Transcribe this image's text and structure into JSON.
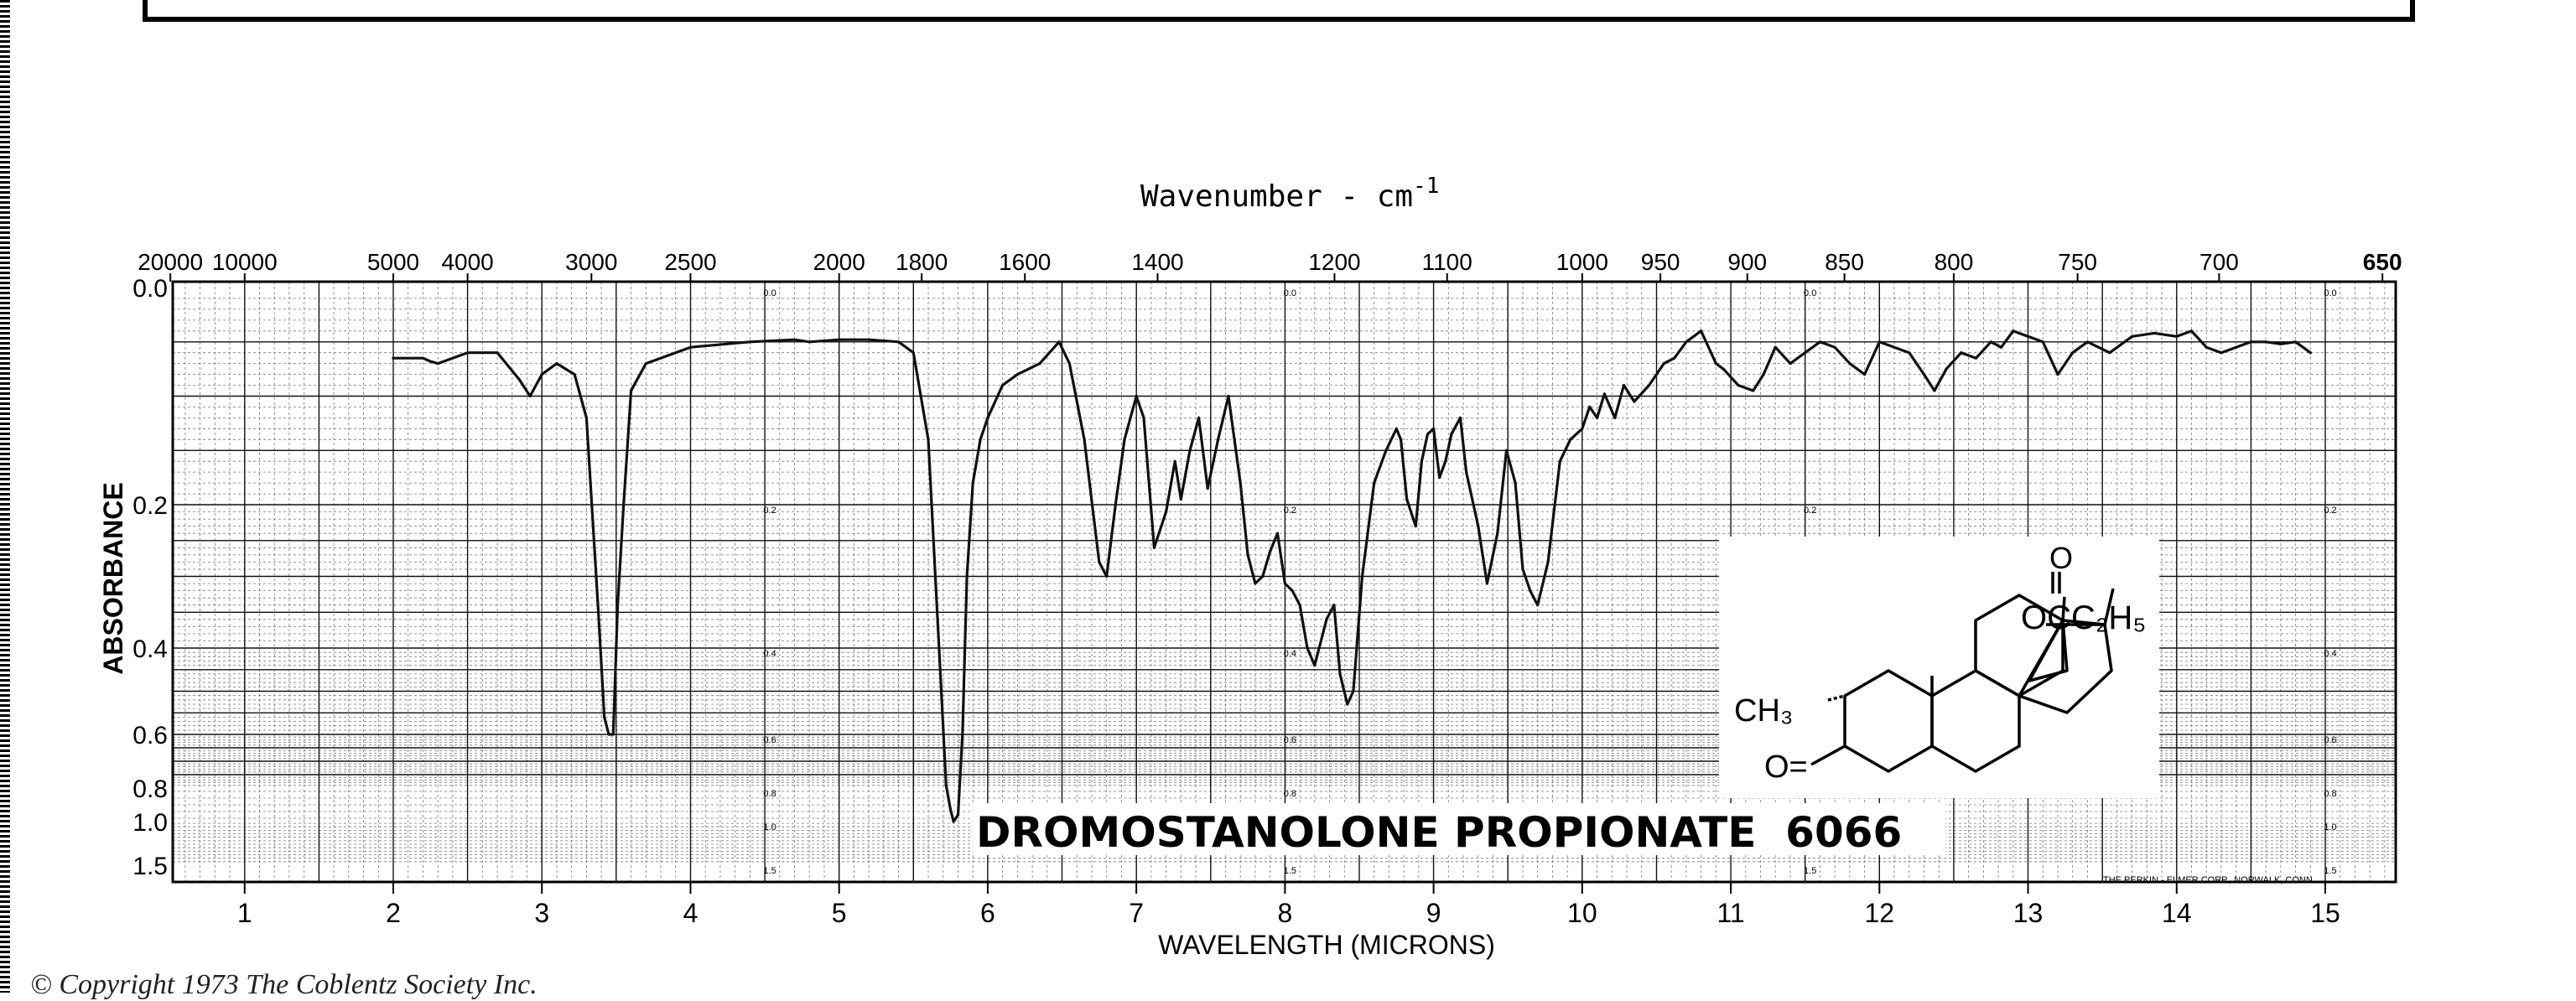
{
  "chart_data": {
    "type": "line",
    "title": "DROMOSTANOLONE PROPIONATE  6066",
    "top_axis_title": "Wavenumber - cm",
    "top_axis_title_exponent": "-1",
    "top_ticks": [
      {
        "wavenumber": 20000,
        "label": "20000"
      },
      {
        "wavenumber": 10000,
        "label": "10000"
      },
      {
        "wavenumber": 5000,
        "label": "5000"
      },
      {
        "wavenumber": 4000,
        "label": "4000"
      },
      {
        "wavenumber": 3000,
        "label": "3000"
      },
      {
        "wavenumber": 2500,
        "label": "2500"
      },
      {
        "wavenumber": 2000,
        "label": "2000"
      },
      {
        "wavenumber": 1800,
        "label": "1800"
      },
      {
        "wavenumber": 1600,
        "label": "1600"
      },
      {
        "wavenumber": 1400,
        "label": "1400"
      },
      {
        "wavenumber": 1200,
        "label": "1200"
      },
      {
        "wavenumber": 1100,
        "label": "1100"
      },
      {
        "wavenumber": 1000,
        "label": "1000"
      },
      {
        "wavenumber": 950,
        "label": "950"
      },
      {
        "wavenumber": 900,
        "label": "900"
      },
      {
        "wavenumber": 850,
        "label": "850"
      },
      {
        "wavenumber": 800,
        "label": "800"
      },
      {
        "wavenumber": 750,
        "label": "750"
      },
      {
        "wavenumber": 700,
        "label": "700"
      },
      {
        "wavenumber": 650,
        "label": "650"
      }
    ],
    "xlabel": "WAVELENGTH (MICRONS)",
    "x_ticks": [
      1,
      2,
      3,
      4,
      5,
      6,
      7,
      8,
      9,
      10,
      11,
      12,
      13,
      14,
      15
    ],
    "xlim": [
      0.5,
      15.5
    ],
    "ylabel": "ABSORBANCE",
    "y_ticks": [
      {
        "value": 0.0,
        "label": "0.0"
      },
      {
        "value": 0.2,
        "label": "0.2"
      },
      {
        "value": 0.4,
        "label": "0.4"
      },
      {
        "value": 0.6,
        "label": "0.6"
      },
      {
        "value": 0.8,
        "label": "0.8"
      },
      {
        "value": 1.0,
        "label": "1.0"
      },
      {
        "value": 1.5,
        "label": "1.5"
      }
    ],
    "ylim": [
      0.0,
      1.5
    ],
    "y_scale": "absorbance (log of transmittance)",
    "grid": true,
    "inner_scale_labels": [
      "0.0",
      "0.2",
      "0.4",
      "0.6",
      "0.8",
      "1.0",
      "1.5"
    ],
    "publisher_text": "THE PERKIN - ELMER CORP., NORWALK, CONN.",
    "series": [
      {
        "x": [
          2.0,
          2.2,
          2.25,
          2.3,
          2.5,
          2.7,
          2.85,
          2.92,
          3.0,
          3.1,
          3.16,
          3.22,
          3.3,
          3.38,
          3.42,
          3.45,
          3.48,
          3.51,
          3.55,
          3.6,
          3.7,
          4.0,
          4.4,
          4.7,
          4.8,
          5.0,
          5.2,
          5.4,
          5.5,
          5.6,
          5.68,
          5.72,
          5.75,
          5.77,
          5.8,
          5.83,
          5.86,
          5.9,
          5.95,
          6.0,
          6.1,
          6.2,
          6.35,
          6.48,
          6.55,
          6.65,
          6.75,
          6.8,
          6.86,
          6.92,
          7.0,
          7.05,
          7.12,
          7.2,
          7.26,
          7.3,
          7.36,
          7.42,
          7.48,
          7.55,
          7.62,
          7.7,
          7.75,
          7.8,
          7.85,
          7.9,
          7.95,
          8.0,
          8.05,
          8.1,
          8.15,
          8.2,
          8.28,
          8.33,
          8.37,
          8.42,
          8.46,
          8.52,
          8.6,
          8.68,
          8.75,
          8.78,
          8.82,
          8.88,
          8.92,
          8.96,
          9.0,
          9.04,
          9.08,
          9.12,
          9.18,
          9.22,
          9.3,
          9.36,
          9.43,
          9.49,
          9.55,
          9.6,
          9.65,
          9.7,
          9.77,
          9.85,
          9.92,
          10.0,
          10.05,
          10.1,
          10.15,
          10.22,
          10.28,
          10.35,
          10.45,
          10.55,
          10.62,
          10.7,
          10.8,
          10.9,
          10.95,
          11.05,
          11.15,
          11.22,
          11.3,
          11.4,
          11.5,
          11.6,
          11.7,
          11.8,
          11.9,
          12.0,
          12.1,
          12.2,
          12.3,
          12.37,
          12.45,
          12.55,
          12.65,
          12.75,
          12.82,
          12.9,
          13.0,
          13.1,
          13.2,
          13.3,
          13.4,
          13.55,
          13.7,
          13.85,
          14.0,
          14.1,
          14.2,
          14.3,
          14.4,
          14.5,
          14.6,
          14.7,
          14.8,
          14.9
        ],
        "y": [
          0.065,
          0.065,
          0.068,
          0.07,
          0.06,
          0.06,
          0.085,
          0.1,
          0.08,
          0.07,
          0.075,
          0.08,
          0.12,
          0.35,
          0.56,
          0.6,
          0.6,
          0.34,
          0.2,
          0.095,
          0.07,
          0.055,
          0.05,
          0.048,
          0.05,
          0.048,
          0.048,
          0.05,
          0.06,
          0.14,
          0.45,
          0.79,
          0.93,
          1.0,
          0.96,
          0.6,
          0.3,
          0.18,
          0.14,
          0.12,
          0.09,
          0.08,
          0.07,
          0.05,
          0.07,
          0.14,
          0.28,
          0.3,
          0.2,
          0.14,
          0.1,
          0.12,
          0.26,
          0.21,
          0.16,
          0.195,
          0.15,
          0.12,
          0.185,
          0.14,
          0.1,
          0.18,
          0.27,
          0.31,
          0.3,
          0.265,
          0.24,
          0.31,
          0.32,
          0.34,
          0.4,
          0.44,
          0.36,
          0.34,
          0.46,
          0.53,
          0.5,
          0.3,
          0.18,
          0.15,
          0.13,
          0.14,
          0.195,
          0.23,
          0.16,
          0.135,
          0.13,
          0.175,
          0.16,
          0.135,
          0.12,
          0.17,
          0.23,
          0.31,
          0.24,
          0.15,
          0.18,
          0.29,
          0.32,
          0.34,
          0.28,
          0.16,
          0.14,
          0.13,
          0.11,
          0.12,
          0.098,
          0.12,
          0.09,
          0.105,
          0.09,
          0.07,
          0.065,
          0.05,
          0.04,
          0.07,
          0.075,
          0.09,
          0.095,
          0.08,
          0.055,
          0.07,
          0.06,
          0.05,
          0.055,
          0.07,
          0.08,
          0.05,
          0.055,
          0.06,
          0.08,
          0.095,
          0.075,
          0.06,
          0.065,
          0.05,
          0.055,
          0.04,
          0.045,
          0.05,
          0.08,
          0.06,
          0.05,
          0.06,
          0.045,
          0.042,
          0.045,
          0.04,
          0.055,
          0.06,
          0.055,
          0.05,
          0.05,
          0.052,
          0.05,
          0.06
        ]
      }
    ]
  },
  "structure": {
    "labels": [
      "O",
      "OCC₂H₅",
      "CH₃",
      "O="
    ]
  },
  "footer": {
    "copyright": "© Copyright 1973 The Coblentz Society Inc."
  }
}
